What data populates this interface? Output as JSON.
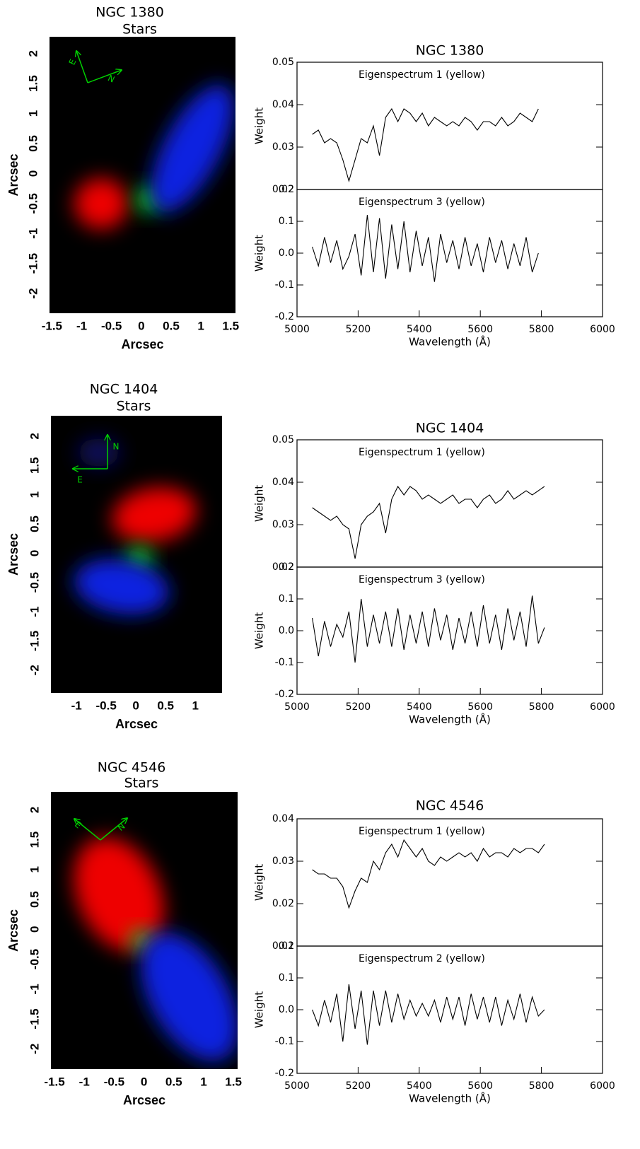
{
  "chart_data": [
    {
      "type": "image",
      "title": "NGC 1380",
      "subtitle": "Stars",
      "xlabel": "Arcsec",
      "ylabel": "Arcsec",
      "compass_labels": {
        "east": "E",
        "north": "N"
      },
      "xlim": [
        -1.54,
        1.58
      ],
      "ylim": [
        -2.33,
        2.28
      ],
      "xticks": [
        -1.5,
        -1,
        -0.5,
        0,
        0.5,
        1,
        1.5
      ],
      "yticks": [
        -2,
        -1.5,
        -1,
        -0.5,
        0,
        0.5,
        1,
        1.5,
        2
      ]
    },
    {
      "type": "line",
      "title": "NGC 1380",
      "annotation": "Eigenspectrum 1 (yellow)",
      "ylabel": "Weight",
      "color": "#000000",
      "xlim": [
        5000,
        6000
      ],
      "ylim": [
        0.02,
        0.05
      ],
      "yticks": [
        0.02,
        0.03,
        0.04,
        0.05
      ],
      "x": [
        5050,
        5070,
        5090,
        5110,
        5130,
        5150,
        5170,
        5190,
        5210,
        5230,
        5250,
        5270,
        5290,
        5310,
        5330,
        5350,
        5370,
        5390,
        5410,
        5430,
        5450,
        5470,
        5490,
        5510,
        5530,
        5550,
        5570,
        5590,
        5610,
        5630,
        5650,
        5670,
        5690,
        5710,
        5730,
        5750,
        5770,
        5790
      ],
      "values": [
        0.033,
        0.034,
        0.031,
        0.032,
        0.031,
        0.027,
        0.022,
        0.027,
        0.032,
        0.031,
        0.035,
        0.028,
        0.037,
        0.039,
        0.036,
        0.039,
        0.038,
        0.036,
        0.038,
        0.035,
        0.037,
        0.036,
        0.035,
        0.036,
        0.035,
        0.037,
        0.036,
        0.034,
        0.036,
        0.036,
        0.035,
        0.037,
        0.035,
        0.036,
        0.038,
        0.037,
        0.036,
        0.039
      ]
    },
    {
      "type": "line",
      "annotation": "Eigenspectrum 3 (yellow)",
      "ylabel": "Weight",
      "xlabel": "Wavelength (Å)",
      "color": "#000000",
      "xlim": [
        5000,
        6000
      ],
      "ylim": [
        -0.2,
        0.2
      ],
      "xticks": [
        5000,
        5200,
        5400,
        5600,
        5800,
        6000
      ],
      "yticks": [
        -0.2,
        -0.1,
        {
          "value": 0,
          "label": "0.0"
        },
        0.1,
        0.2
      ],
      "x": [
        5050,
        5070,
        5090,
        5110,
        5130,
        5150,
        5170,
        5190,
        5210,
        5230,
        5250,
        5270,
        5290,
        5310,
        5330,
        5350,
        5370,
        5390,
        5410,
        5430,
        5450,
        5470,
        5490,
        5510,
        5530,
        5550,
        5570,
        5590,
        5610,
        5630,
        5650,
        5670,
        5690,
        5710,
        5730,
        5750,
        5770,
        5790
      ],
      "values": [
        0.02,
        -0.04,
        0.05,
        -0.03,
        0.04,
        -0.05,
        -0.01,
        0.06,
        -0.07,
        0.12,
        -0.06,
        0.11,
        -0.08,
        0.09,
        -0.05,
        0.1,
        -0.06,
        0.07,
        -0.04,
        0.05,
        -0.09,
        0.06,
        -0.03,
        0.04,
        -0.05,
        0.05,
        -0.04,
        0.03,
        -0.06,
        0.05,
        -0.03,
        0.04,
        -0.05,
        0.03,
        -0.04,
        0.05,
        -0.06,
        0.0
      ]
    },
    {
      "type": "image",
      "title": "NGC 1404",
      "subtitle": "Stars",
      "xlabel": "Arcsec",
      "ylabel": "Arcsec",
      "compass_labels": {
        "east": "E",
        "north": "N"
      },
      "xlim": [
        -1.43,
        1.45
      ],
      "ylim": [
        -2.39,
        2.35
      ],
      "xticks": [
        -1,
        -0.5,
        0,
        0.5,
        1
      ],
      "yticks": [
        -2,
        -1.5,
        -1,
        -0.5,
        0,
        0.5,
        1,
        1.5,
        2
      ]
    },
    {
      "type": "line",
      "title": "NGC 1404",
      "annotation": "Eigenspectrum 1 (yellow)",
      "ylabel": "Weight",
      "color": "#000000",
      "xlim": [
        5000,
        6000
      ],
      "ylim": [
        0.02,
        0.05
      ],
      "yticks": [
        0.02,
        0.03,
        0.04,
        0.05
      ],
      "x": [
        5050,
        5070,
        5090,
        5110,
        5130,
        5150,
        5170,
        5190,
        5210,
        5230,
        5250,
        5270,
        5290,
        5310,
        5330,
        5350,
        5370,
        5390,
        5410,
        5430,
        5450,
        5470,
        5490,
        5510,
        5530,
        5550,
        5570,
        5590,
        5610,
        5630,
        5650,
        5670,
        5690,
        5710,
        5730,
        5750,
        5770,
        5790,
        5810
      ],
      "values": [
        0.034,
        0.033,
        0.032,
        0.031,
        0.032,
        0.03,
        0.029,
        0.022,
        0.03,
        0.032,
        0.033,
        0.035,
        0.028,
        0.036,
        0.039,
        0.037,
        0.039,
        0.038,
        0.036,
        0.037,
        0.036,
        0.035,
        0.036,
        0.037,
        0.035,
        0.036,
        0.036,
        0.034,
        0.036,
        0.037,
        0.035,
        0.036,
        0.038,
        0.036,
        0.037,
        0.038,
        0.037,
        0.038,
        0.039
      ]
    },
    {
      "type": "line",
      "annotation": "Eigenspectrum 3 (yellow)",
      "ylabel": "Weight",
      "xlabel": "Wavelength (Å)",
      "color": "#000000",
      "xlim": [
        5000,
        6000
      ],
      "ylim": [
        -0.2,
        0.2
      ],
      "xticks": [
        5000,
        5200,
        5400,
        5600,
        5800,
        6000
      ],
      "yticks": [
        -0.2,
        -0.1,
        {
          "value": 0,
          "label": "0.0"
        },
        0.1,
        0.2
      ],
      "x": [
        5050,
        5070,
        5090,
        5110,
        5130,
        5150,
        5170,
        5190,
        5210,
        5230,
        5250,
        5270,
        5290,
        5310,
        5330,
        5350,
        5370,
        5390,
        5410,
        5430,
        5450,
        5470,
        5490,
        5510,
        5530,
        5550,
        5570,
        5590,
        5610,
        5630,
        5650,
        5670,
        5690,
        5710,
        5730,
        5750,
        5770,
        5790,
        5810
      ],
      "values": [
        0.04,
        -0.08,
        0.03,
        -0.05,
        0.02,
        -0.02,
        0.06,
        -0.1,
        0.1,
        -0.05,
        0.05,
        -0.04,
        0.06,
        -0.05,
        0.07,
        -0.06,
        0.05,
        -0.04,
        0.06,
        -0.05,
        0.07,
        -0.03,
        0.05,
        -0.06,
        0.04,
        -0.04,
        0.06,
        -0.05,
        0.08,
        -0.04,
        0.05,
        -0.06,
        0.07,
        -0.03,
        0.06,
        -0.05,
        0.11,
        -0.04,
        0.01
      ]
    },
    {
      "type": "image",
      "title": "NGC 4546",
      "subtitle": "Stars",
      "xlabel": "Arcsec",
      "ylabel": "Arcsec",
      "compass_labels": {
        "east": "E",
        "north": "N"
      },
      "xlim": [
        -1.56,
        1.57
      ],
      "ylim": [
        -2.34,
        2.3
      ],
      "xticks": [
        -1.5,
        -1,
        -0.5,
        0,
        0.5,
        1,
        1.5
      ],
      "yticks": [
        -2,
        -1.5,
        -1,
        -0.5,
        0,
        0.5,
        1,
        1.5,
        2
      ]
    },
    {
      "type": "line",
      "title": "NGC 4546",
      "annotation": "Eigenspectrum 1 (yellow)",
      "ylabel": "Weight",
      "color": "#000000",
      "xlim": [
        5000,
        6000
      ],
      "ylim": [
        0.01,
        0.04
      ],
      "yticks": [
        0.01,
        0.02,
        0.03,
        0.04
      ],
      "x": [
        5050,
        5070,
        5090,
        5110,
        5130,
        5150,
        5170,
        5190,
        5210,
        5230,
        5250,
        5270,
        5290,
        5310,
        5330,
        5350,
        5370,
        5390,
        5410,
        5430,
        5450,
        5470,
        5490,
        5510,
        5530,
        5550,
        5570,
        5590,
        5610,
        5630,
        5650,
        5670,
        5690,
        5710,
        5730,
        5750,
        5770,
        5790,
        5810
      ],
      "values": [
        0.028,
        0.027,
        0.027,
        0.026,
        0.026,
        0.024,
        0.019,
        0.023,
        0.026,
        0.025,
        0.03,
        0.028,
        0.032,
        0.034,
        0.031,
        0.035,
        0.033,
        0.031,
        0.033,
        0.03,
        0.029,
        0.031,
        0.03,
        0.031,
        0.032,
        0.031,
        0.032,
        0.03,
        0.033,
        0.031,
        0.032,
        0.032,
        0.031,
        0.033,
        0.032,
        0.033,
        0.033,
        0.032,
        0.034
      ]
    },
    {
      "type": "line",
      "annotation": "Eigenspectrum 2 (yellow)",
      "ylabel": "Weight",
      "xlabel": "Wavelength (Å)",
      "color": "#000000",
      "xlim": [
        5000,
        6000
      ],
      "ylim": [
        -0.2,
        0.2
      ],
      "xticks": [
        5000,
        5200,
        5400,
        5600,
        5800,
        6000
      ],
      "yticks": [
        -0.2,
        -0.1,
        {
          "value": 0,
          "label": "0.0"
        },
        0.1,
        0.2
      ],
      "x": [
        5050,
        5070,
        5090,
        5110,
        5130,
        5150,
        5170,
        5190,
        5210,
        5230,
        5250,
        5270,
        5290,
        5310,
        5330,
        5350,
        5370,
        5390,
        5410,
        5430,
        5450,
        5470,
        5490,
        5510,
        5530,
        5550,
        5570,
        5590,
        5610,
        5630,
        5650,
        5670,
        5690,
        5710,
        5730,
        5750,
        5770,
        5790,
        5810
      ],
      "values": [
        0.0,
        -0.05,
        0.03,
        -0.04,
        0.05,
        -0.1,
        0.08,
        -0.06,
        0.06,
        -0.11,
        0.06,
        -0.05,
        0.06,
        -0.04,
        0.05,
        -0.03,
        0.03,
        -0.02,
        0.02,
        -0.02,
        0.03,
        -0.04,
        0.04,
        -0.03,
        0.04,
        -0.05,
        0.05,
        -0.03,
        0.04,
        -0.04,
        0.04,
        -0.05,
        0.03,
        -0.03,
        0.05,
        -0.04,
        0.04,
        -0.02,
        0.0
      ]
    }
  ]
}
